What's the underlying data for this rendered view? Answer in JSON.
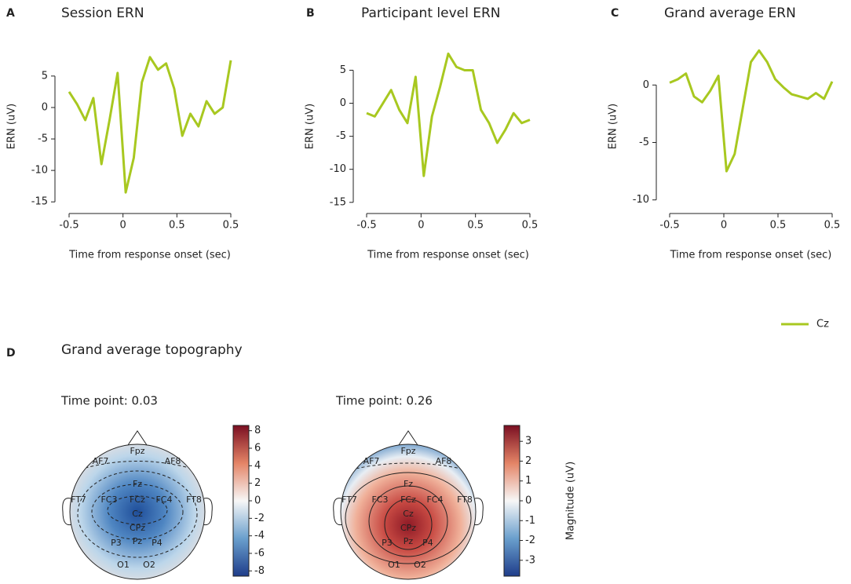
{
  "chart_data": [
    {
      "type": "line",
      "panel_label": "A",
      "title": "Session ERN",
      "xlabel": "Time from response onset (sec)",
      "ylabel": "ERN (uV)",
      "x_tick_labels": [
        "-0.5",
        "0",
        "0.5",
        "0.5"
      ],
      "color": "#a8c820",
      "values": [
        2.5,
        0.5,
        -2,
        1.5,
        -9,
        -2,
        5.5,
        -13.5,
        -8,
        4,
        8,
        6,
        7,
        3,
        -4.5,
        -1,
        -3,
        1,
        -1,
        0,
        7.5
      ],
      "ylim": [
        -15.6,
        9.6
      ],
      "yticks": [
        -15,
        -10,
        -5,
        0,
        5
      ]
    },
    {
      "type": "line",
      "panel_label": "B",
      "title": "Participant level ERN",
      "xlabel": "Time from response onset (sec)",
      "ylabel": "ERN (uV)",
      "x_tick_labels": [
        "-0.5",
        "0",
        "0.5",
        "0.5"
      ],
      "color": "#a8c820",
      "values": [
        -1.5,
        -2,
        0,
        2,
        -1,
        -3,
        4,
        -11,
        -2,
        2.5,
        7.5,
        5.5,
        5,
        5,
        -1,
        -3,
        -6,
        -4,
        -1.5,
        -3,
        -2.5
      ],
      "ylim": [
        -15.5,
        8.5
      ],
      "yticks": [
        -15,
        -10,
        -5,
        0,
        5
      ]
    },
    {
      "type": "line",
      "panel_label": "C",
      "title": "Grand average ERN",
      "xlabel": "Time from response onset (sec)",
      "ylabel": "ERN (uV)",
      "x_tick_labels": [
        "-0.5",
        "0",
        "0.5",
        "0.5"
      ],
      "series": [
        {
          "name": "Cz",
          "color": "#a8c820",
          "values": [
            0.2,
            0.5,
            1,
            -1,
            -1.5,
            -0.5,
            0.8,
            -7.5,
            -6,
            -2,
            2,
            3,
            2,
            0.5,
            -0.2,
            -0.8,
            -1,
            -1.2,
            -0.7,
            -1.2,
            0.3
          ]
        }
      ],
      "ylim": [
        -10.5,
        3.3
      ],
      "yticks": [
        -10,
        -5,
        0
      ]
    }
  ],
  "topography": {
    "panel_label": "D",
    "title": "Grand average topography",
    "maps": [
      {
        "title": "Time point: 0.03",
        "colorbar_ylim": [
          -8.6,
          8.6
        ],
        "colorbar_ticks": [
          -8,
          -6,
          -4,
          -2,
          0,
          2,
          4,
          6,
          8
        ],
        "electrodes": [
          "Fpz",
          "AF7",
          "AF8",
          "Fz",
          "FT7",
          "FC3",
          "FCz",
          "FC4",
          "FT8",
          "Cz",
          "CPz",
          "P3",
          "Pz",
          "P4",
          "O1",
          "O2"
        ]
      },
      {
        "title": "Time point: 0.26",
        "colorbar_ylim": [
          -3.8,
          3.8
        ],
        "colorbar_ticks": [
          -3,
          -2,
          -1,
          0,
          1,
          2,
          3
        ],
        "colorbar_label": "Magnitude (uV)",
        "electrodes": [
          "Fpz",
          "AF7",
          "AF8",
          "Fz",
          "FT7",
          "FC3",
          "FCz",
          "FC4",
          "FT8",
          "Cz",
          "CPz",
          "P3",
          "Pz",
          "P4",
          "O1",
          "O2"
        ]
      }
    ]
  }
}
